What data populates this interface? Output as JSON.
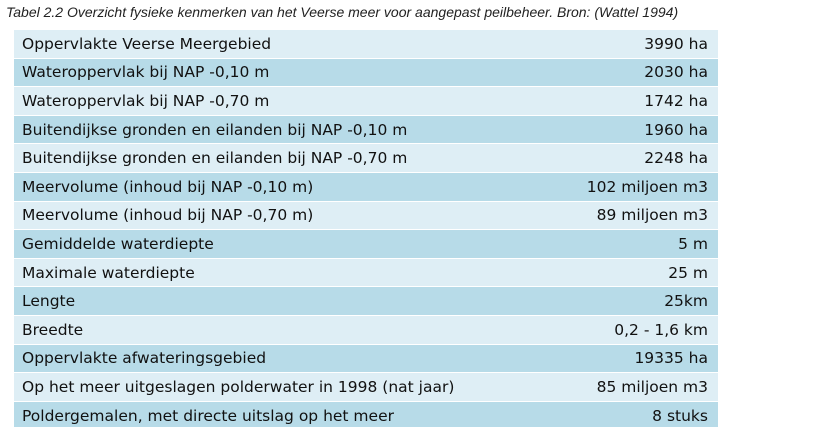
{
  "caption": "Tabel 2.2 Overzicht fysieke kenmerken van het Veerse meer voor aangepast peilbeheer. Bron: (Wattel 1994)",
  "rows": [
    {
      "label": "Oppervlakte Veerse Meergebied",
      "value": "3990 ha"
    },
    {
      "label": "Wateroppervlak bij NAP -0,10 m",
      "value": "2030 ha"
    },
    {
      "label": "Wateroppervlak bij NAP -0,70 m",
      "value": "1742 ha"
    },
    {
      "label": "Buitendijkse gronden en eilanden bij NAP -0,10 m",
      "value": "1960 ha"
    },
    {
      "label": "Buitendijkse gronden en eilanden bij NAP -0,70 m",
      "value": "2248 ha"
    },
    {
      "label": "Meervolume (inhoud bij NAP -0,10 m)",
      "value": "102 miljoen m3"
    },
    {
      "label": "Meervolume (inhoud bij NAP -0,70 m)",
      "value": "89 miljoen m3"
    },
    {
      "label": "Gemiddelde waterdiepte",
      "value": "5 m"
    },
    {
      "label": "Maximale waterdiepte",
      "value": "25 m"
    },
    {
      "label": "Lengte",
      "value": "25km"
    },
    {
      "label": "Breedte",
      "value": "0,2 - 1,6 km"
    },
    {
      "label": "Oppervlakte afwateringsgebied",
      "value": "19335 ha"
    },
    {
      "label": "Op het meer uitgeslagen polderwater in 1998 (nat jaar)",
      "value": "85 miljoen m3"
    },
    {
      "label": "Poldergemalen, met directe uitslag op het meer",
      "value": "8 stuks"
    }
  ],
  "colors": {
    "row_light": "#deeef5",
    "row_dark": "#b7dbe8"
  }
}
